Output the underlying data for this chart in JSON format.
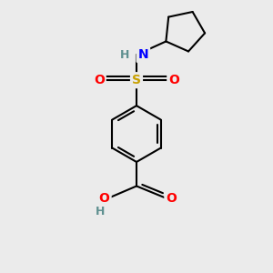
{
  "background_color": "#ebebeb",
  "atom_colors": {
    "C": "#000000",
    "H": "#5f9090",
    "N": "#0000ff",
    "O": "#ff0000",
    "S": "#c8a000"
  },
  "bond_color": "#000000",
  "bond_width": 1.5,
  "figsize": [
    3.0,
    3.0
  ],
  "dpi": 100
}
